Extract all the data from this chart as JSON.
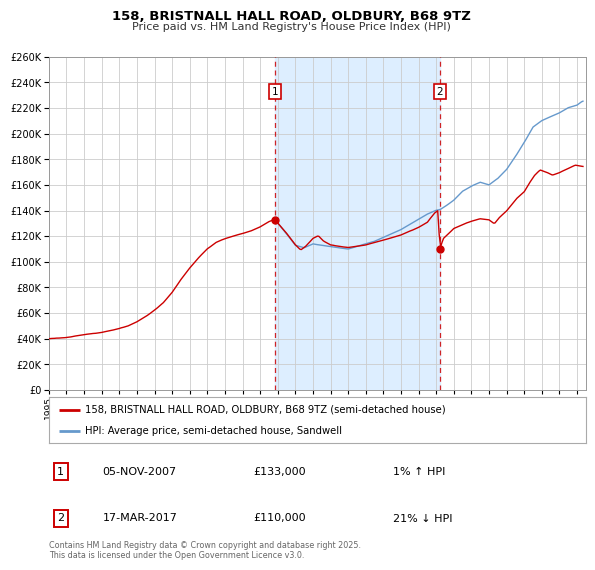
{
  "title": "158, BRISTNALL HALL ROAD, OLDBURY, B68 9TZ",
  "subtitle": "Price paid vs. HM Land Registry's House Price Index (HPI)",
  "legend_line1": "158, BRISTNALL HALL ROAD, OLDBURY, B68 9TZ (semi-detached house)",
  "legend_line2": "HPI: Average price, semi-detached house, Sandwell",
  "marker1_date": "05-NOV-2007",
  "marker1_price": 133000,
  "marker1_hpi": "1% ↑ HPI",
  "marker2_date": "17-MAR-2017",
  "marker2_price": 110000,
  "marker2_hpi": "21% ↓ HPI",
  "marker1_x": 2007.843,
  "marker2_x": 2017.208,
  "xmin": 1995,
  "xmax": 2025.5,
  "ymin": 0,
  "ymax": 260000,
  "yticks": [
    0,
    20000,
    40000,
    60000,
    80000,
    100000,
    120000,
    140000,
    160000,
    180000,
    200000,
    220000,
    240000,
    260000
  ],
  "red_color": "#cc0000",
  "blue_color": "#6699cc",
  "shade_color": "#ddeeff",
  "grid_color": "#cccccc",
  "background_color": "#ffffff",
  "footer_text": "Contains HM Land Registry data © Crown copyright and database right 2025.\nThis data is licensed under the Open Government Licence v3.0."
}
